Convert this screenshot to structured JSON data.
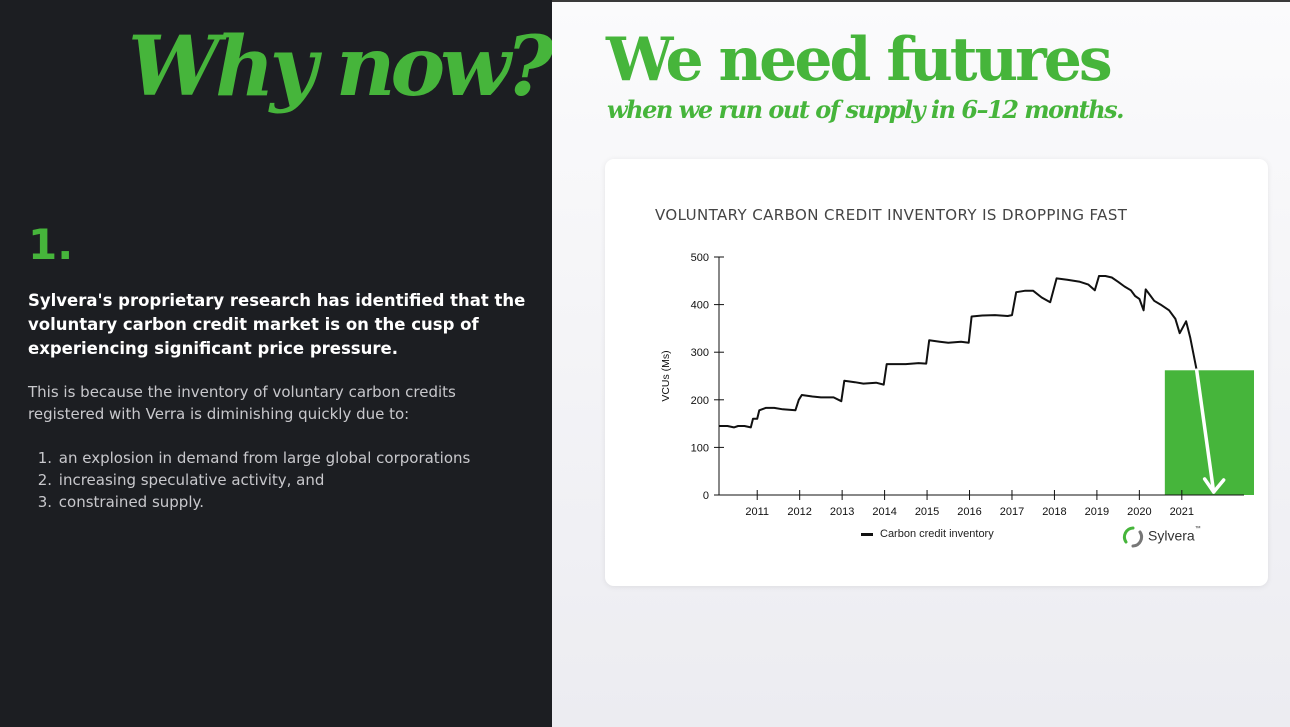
{
  "left": {
    "title": "Why now?",
    "number": "1.",
    "lead": "Sylvera's proprietary research has identified that the voluntary carbon credit market is on the cusp of experiencing significant price pressure.",
    "body": "This is because the inventory of voluntary carbon credits registered with Verra is diminishing quickly due to:",
    "reasons": [
      {
        "index": "1.",
        "text": "an explosion in demand from large global corporations"
      },
      {
        "index": "2.",
        "text": "increasing speculative activity, and"
      },
      {
        "index": "3.",
        "text": "constrained supply."
      }
    ]
  },
  "right": {
    "headline": "We need futures",
    "subhead": "when we run out of supply in 6–12 months.",
    "brand": "Sylvera",
    "brand_tm": "™"
  },
  "colors": {
    "accent": "#46b53b",
    "dark_panel": "#1c1e22",
    "line": "#111111",
    "highlight": "#46b53b",
    "arrow": "#ffffff"
  },
  "chart_data": {
    "type": "line",
    "title": "VOLUNTARY CARBON CREDIT INVENTORY IS DROPPING FAST",
    "xlabel": "",
    "ylabel": "VCUs (Ms)",
    "ylim": [
      0,
      500
    ],
    "xlim": [
      2010.1,
      2022.7
    ],
    "yticks": [
      0,
      100,
      200,
      300,
      400,
      500
    ],
    "xticks": [
      "2011",
      "2012",
      "2013",
      "2014",
      "2015",
      "2016",
      "2017",
      "2018",
      "2019",
      "2020",
      "2021"
    ],
    "legend": "bottom-center",
    "grid": false,
    "series": [
      {
        "name": "Carbon credit inventory",
        "x": [
          2010.1,
          2010.3,
          2010.45,
          2010.55,
          2010.7,
          2010.85,
          2010.9,
          2011.0,
          2011.05,
          2011.2,
          2011.4,
          2011.6,
          2011.9,
          2011.98,
          2012.05,
          2012.3,
          2012.5,
          2012.8,
          2012.98,
          2013.05,
          2013.3,
          2013.5,
          2013.8,
          2013.98,
          2014.05,
          2014.3,
          2014.5,
          2014.8,
          2014.98,
          2015.05,
          2015.3,
          2015.5,
          2015.8,
          2015.98,
          2016.05,
          2016.3,
          2016.6,
          2016.9,
          2017.0,
          2017.1,
          2017.3,
          2017.5,
          2017.7,
          2017.9,
          2018.05,
          2018.3,
          2018.6,
          2018.8,
          2018.95,
          2019.05,
          2019.2,
          2019.35,
          2019.5,
          2019.65,
          2019.8,
          2019.9,
          2020.0,
          2020.1,
          2020.15,
          2020.25,
          2020.35,
          2020.5,
          2020.7,
          2020.85,
          2020.95,
          2021.1,
          2021.2,
          2021.35
        ],
        "values": [
          145,
          145,
          142,
          145,
          145,
          142,
          160,
          160,
          178,
          183,
          183,
          180,
          178,
          200,
          210,
          207,
          205,
          205,
          197,
          240,
          237,
          234,
          236,
          232,
          275,
          275,
          275,
          277,
          276,
          325,
          322,
          320,
          322,
          320,
          375,
          377,
          378,
          376,
          378,
          426,
          429,
          429,
          415,
          405,
          455,
          452,
          448,
          442,
          430,
          460,
          460,
          457,
          448,
          438,
          430,
          418,
          412,
          388,
          432,
          420,
          408,
          400,
          388,
          370,
          340,
          365,
          330,
          262
        ]
      }
    ],
    "annotations": {
      "highlight_box": {
        "x0": 2020.6,
        "x1": 2022.7,
        "y0": 0,
        "y1": 262
      },
      "arrow": {
        "x0": 2021.35,
        "y0": 262,
        "x1": 2021.75,
        "y1": 0
      }
    }
  }
}
